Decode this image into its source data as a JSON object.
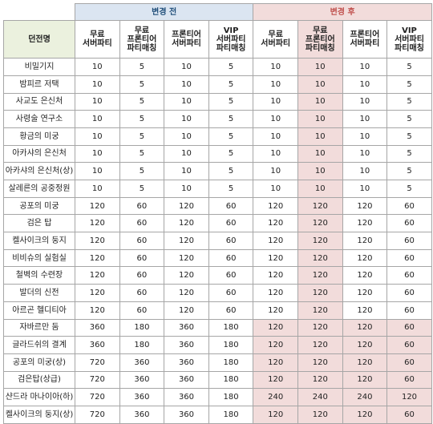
{
  "header": {
    "before": "변경 전",
    "after": "변경 후",
    "name_header": "던전명",
    "columns": [
      [
        "무료",
        "서버파티"
      ],
      [
        "무료",
        "프론티어",
        "파티매칭"
      ],
      [
        "프론티어",
        "서버파티"
      ],
      [
        "VIP",
        "서버파티",
        "파티매칭"
      ],
      [
        "무료",
        "서버파티"
      ],
      [
        "무료",
        "프론티어",
        "파티매칭"
      ],
      [
        "프론티어",
        "서버파티"
      ],
      [
        "VIP",
        "서버파티",
        "파티매칭"
      ]
    ]
  },
  "table": {
    "rows": [
      {
        "name": "비밀기지",
        "values": [
          10,
          5,
          10,
          5,
          10,
          10,
          10,
          5
        ]
      },
      {
        "name": "밤피르 저택",
        "values": [
          10,
          5,
          10,
          5,
          10,
          10,
          10,
          5
        ]
      },
      {
        "name": "사교도 은신처",
        "values": [
          10,
          5,
          10,
          5,
          10,
          10,
          10,
          5
        ]
      },
      {
        "name": "사령술 연구소",
        "values": [
          10,
          5,
          10,
          5,
          10,
          10,
          10,
          5
        ]
      },
      {
        "name": "황금의 미궁",
        "values": [
          10,
          5,
          10,
          5,
          10,
          10,
          10,
          5
        ]
      },
      {
        "name": "아카샤의 은신처",
        "values": [
          10,
          5,
          10,
          5,
          10,
          10,
          10,
          5
        ]
      },
      {
        "name": "아카샤의 은신처(상)",
        "values": [
          10,
          5,
          10,
          5,
          10,
          10,
          10,
          5
        ]
      },
      {
        "name": "살레른의 공중정원",
        "values": [
          10,
          5,
          10,
          5,
          10,
          10,
          10,
          5
        ]
      },
      {
        "name": "공포의 미궁",
        "values": [
          120,
          60,
          120,
          60,
          120,
          120,
          120,
          60
        ]
      },
      {
        "name": "검은 탑",
        "values": [
          120,
          60,
          120,
          60,
          120,
          120,
          120,
          60
        ]
      },
      {
        "name": "켈사이크의 둥지",
        "values": [
          120,
          60,
          120,
          60,
          120,
          120,
          120,
          60
        ]
      },
      {
        "name": "비비슈의 실험실",
        "values": [
          120,
          60,
          120,
          60,
          120,
          120,
          120,
          60
        ]
      },
      {
        "name": "철벽의 수련장",
        "values": [
          120,
          60,
          120,
          60,
          120,
          120,
          120,
          60
        ]
      },
      {
        "name": "발더의 신전",
        "values": [
          120,
          60,
          120,
          60,
          120,
          120,
          120,
          60
        ]
      },
      {
        "name": "아르곤 헬디티아",
        "values": [
          120,
          60,
          120,
          60,
          120,
          120,
          120,
          60
        ]
      },
      {
        "name": "자바르만 둠",
        "values": [
          360,
          180,
          360,
          180,
          120,
          120,
          120,
          60
        ]
      },
      {
        "name": "글라드쉬의 결계",
        "values": [
          360,
          180,
          360,
          180,
          120,
          120,
          120,
          60
        ]
      },
      {
        "name": "공포의 미궁(상)",
        "values": [
          720,
          360,
          360,
          180,
          120,
          120,
          120,
          60
        ]
      },
      {
        "name": "검은탑(상급)",
        "values": [
          720,
          360,
          360,
          180,
          120,
          120,
          120,
          60
        ]
      },
      {
        "name": "샨드라 마나이아(하)",
        "values": [
          720,
          360,
          360,
          180,
          240,
          240,
          240,
          120
        ]
      },
      {
        "name": "켈사이크의 둥지(상)",
        "values": [
          720,
          360,
          360,
          180,
          120,
          120,
          120,
          60
        ]
      }
    ]
  }
}
